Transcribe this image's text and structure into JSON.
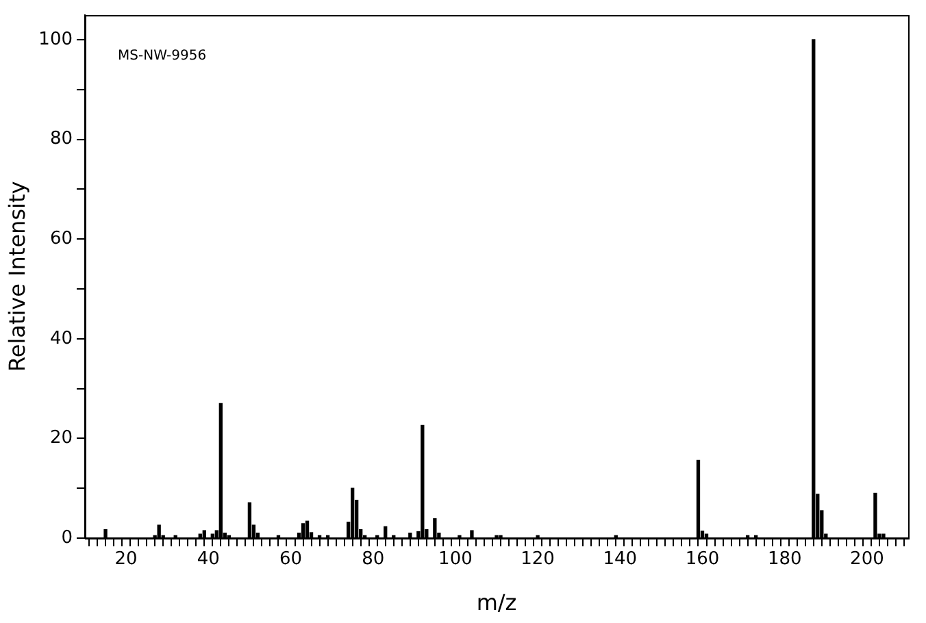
{
  "chart_data": {
    "type": "bar",
    "xlabel": "m/z",
    "ylabel": "Relative Intensity",
    "annotations": [
      "MS-NW-9956"
    ],
    "x": [
      15,
      27,
      28,
      29,
      32,
      38,
      39,
      41,
      42,
      43,
      44,
      45,
      50,
      51,
      52,
      57,
      62,
      63,
      64,
      65,
      67,
      69,
      74,
      75,
      76,
      77,
      78,
      81,
      83,
      85,
      89,
      91,
      92,
      93,
      95,
      96,
      101,
      104,
      110,
      111,
      120,
      139,
      159,
      160,
      161,
      171,
      173,
      187,
      188,
      189,
      190,
      202,
      203,
      204
    ],
    "values": [
      1.7,
      0.5,
      2.6,
      0.5,
      0.5,
      0.8,
      1.5,
      0.8,
      1.5,
      27,
      1,
      0.5,
      7.1,
      2.6,
      1,
      0.5,
      1,
      2.9,
      3.4,
      1.1,
      0.5,
      0.5,
      3.2,
      10,
      7.6,
      1.7,
      0.5,
      0.5,
      2.3,
      0.5,
      1,
      1.3,
      22.6,
      1.7,
      3.9,
      1,
      0.5,
      1.5,
      0.5,
      0.5,
      0.5,
      0.5,
      15.6,
      1.4,
      0.8,
      0.5,
      0.5,
      100,
      8.8,
      5.5,
      0.8,
      9,
      0.8,
      0.8
    ],
    "color": "#000000",
    "xlim": [
      10,
      210
    ],
    "xticks": [
      {
        "value": 12,
        "label": null
      },
      {
        "value": 14,
        "label": null
      },
      {
        "value": 16,
        "label": null
      },
      {
        "value": 18,
        "label": null
      },
      20,
      {
        "value": 22,
        "label": null
      },
      {
        "value": 24,
        "label": null
      },
      {
        "value": 26,
        "label": null
      },
      {
        "value": 28,
        "label": null
      },
      {
        "value": 30,
        "label": null
      },
      {
        "value": 32,
        "label": null
      },
      {
        "value": 34,
        "label": null
      },
      {
        "value": 36,
        "label": null
      },
      {
        "value": 38,
        "label": null
      },
      40,
      {
        "value": 42,
        "label": null
      },
      {
        "value": 44,
        "label": null
      },
      {
        "value": 46,
        "label": null
      },
      {
        "value": 48,
        "label": null
      },
      {
        "value": 50,
        "label": null
      },
      {
        "value": 52,
        "label": null
      },
      {
        "value": 54,
        "label": null
      },
      {
        "value": 56,
        "label": null
      },
      {
        "value": 58,
        "label": null
      },
      60,
      {
        "value": 62,
        "label": null
      },
      {
        "value": 64,
        "label": null
      },
      {
        "value": 66,
        "label": null
      },
      {
        "value": 68,
        "label": null
      },
      {
        "value": 70,
        "label": null
      },
      {
        "value": 72,
        "label": null
      },
      {
        "value": 74,
        "label": null
      },
      {
        "value": 76,
        "label": null
      },
      {
        "value": 78,
        "label": null
      },
      80,
      {
        "value": 82,
        "label": null
      },
      {
        "value": 84,
        "label": null
      },
      {
        "value": 86,
        "label": null
      },
      {
        "value": 88,
        "label": null
      },
      {
        "value": 90,
        "label": null
      },
      {
        "value": 92,
        "label": null
      },
      {
        "value": 94,
        "label": null
      },
      {
        "value": 96,
        "label": null
      },
      {
        "value": 98,
        "label": null
      },
      100,
      {
        "value": 102,
        "label": null
      },
      {
        "value": 104,
        "label": null
      },
      {
        "value": 106,
        "label": null
      },
      {
        "value": 108,
        "label": null
      },
      {
        "value": 110,
        "label": null
      },
      {
        "value": 112,
        "label": null
      },
      {
        "value": 114,
        "label": null
      },
      {
        "value": 116,
        "label": null
      },
      {
        "value": 118,
        "label": null
      },
      120,
      {
        "value": 122,
        "label": null
      },
      {
        "value": 124,
        "label": null
      },
      {
        "value": 126,
        "label": null
      },
      {
        "value": 128,
        "label": null
      },
      {
        "value": 130,
        "label": null
      },
      {
        "value": 132,
        "label": null
      },
      {
        "value": 134,
        "label": null
      },
      {
        "value": 136,
        "label": null
      },
      {
        "value": 138,
        "label": null
      },
      140,
      {
        "value": 142,
        "label": null
      },
      {
        "value": 144,
        "label": null
      },
      {
        "value": 146,
        "label": null
      },
      {
        "value": 148,
        "label": null
      },
      {
        "value": 150,
        "label": null
      },
      {
        "value": 152,
        "label": null
      },
      {
        "value": 154,
        "label": null
      },
      {
        "value": 156,
        "label": null
      },
      {
        "value": 158,
        "label": null
      },
      160,
      {
        "value": 162,
        "label": null
      },
      {
        "value": 164,
        "label": null
      },
      {
        "value": 166,
        "label": null
      },
      {
        "value": 168,
        "label": null
      },
      {
        "value": 170,
        "label": null
      },
      {
        "value": 172,
        "label": null
      },
      {
        "value": 174,
        "label": null
      },
      {
        "value": 176,
        "label": null
      },
      {
        "value": 178,
        "label": null
      },
      180,
      {
        "value": 182,
        "label": null
      },
      {
        "value": 184,
        "label": null
      },
      {
        "value": 186,
        "label": null
      },
      {
        "value": 188,
        "label": null
      },
      {
        "value": 190,
        "label": null
      },
      {
        "value": 192,
        "label": null
      },
      {
        "value": 194,
        "label": null
      },
      {
        "value": 196,
        "label": null
      },
      {
        "value": 198,
        "label": null
      },
      200,
      {
        "value": 202,
        "label": null
      },
      {
        "value": 204,
        "label": null
      },
      {
        "value": 206,
        "label": null
      },
      {
        "value": 208,
        "label": null
      }
    ],
    "ylim": [
      0,
      105
    ],
    "yticks": [
      0,
      {
        "value": 10,
        "label": null
      },
      20,
      {
        "value": 30,
        "label": null
      },
      40,
      {
        "value": 50,
        "label": null
      },
      60,
      {
        "value": 70,
        "label": null
      },
      80,
      {
        "value": 90,
        "label": null
      },
      100
    ]
  }
}
